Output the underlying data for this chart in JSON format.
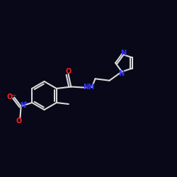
{
  "background_color": "#080818",
  "bond_color": "#d8d8d8",
  "nitrogen_color": "#3333ff",
  "oxygen_color": "#ff2020",
  "figsize": [
    2.5,
    2.5
  ],
  "dpi": 100,
  "xlim": [
    0,
    10
  ],
  "ylim": [
    0,
    10
  ]
}
